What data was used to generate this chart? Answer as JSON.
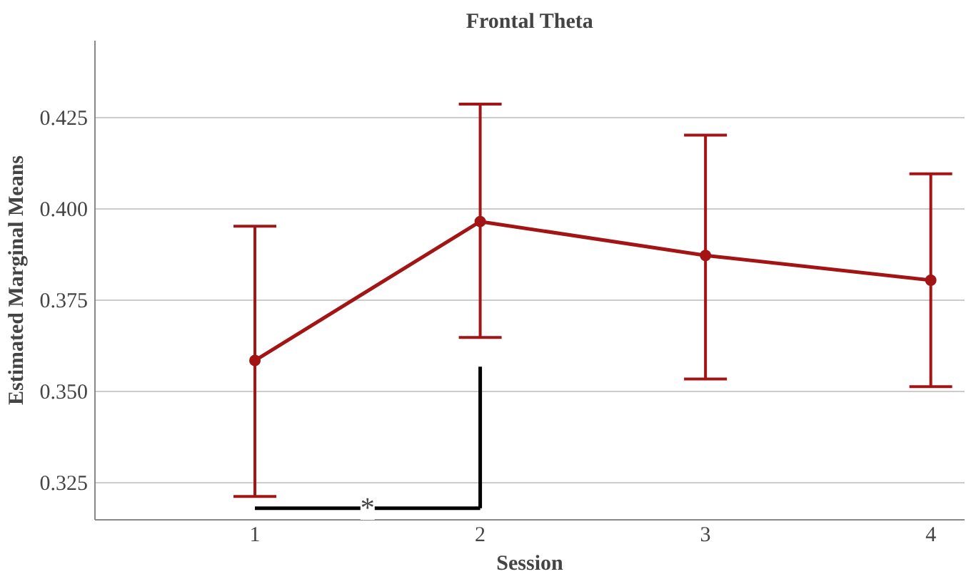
{
  "chart_data": {
    "type": "line",
    "title": "Frontal Theta",
    "xlabel": "Session",
    "ylabel": "Estimated Marginal Means",
    "x": [
      1,
      2,
      3,
      4
    ],
    "series": [
      {
        "color": "#a31515",
        "values": [
          0.3585,
          0.3966,
          0.3873,
          0.3805
        ],
        "errors": [
          [
            0.3212,
            0.3953
          ],
          [
            0.3648,
            0.4288
          ],
          [
            0.3534,
            0.4203
          ],
          [
            0.3513,
            0.4097
          ]
        ]
      }
    ],
    "xlim": [
      0.29,
      4.15
    ],
    "xticks": [
      1,
      2,
      3,
      4
    ],
    "ylim": [
      0.3148,
      0.4462
    ],
    "yticks": [
      0.325,
      {
        "value": 0.35,
        "label": "0.350"
      },
      0.375,
      {
        "value": 0.4,
        "label": "0.400"
      },
      0.425
    ],
    "grid": "y",
    "marker": "circle",
    "line_style": "solid",
    "annotations": [
      {
        "text": "*",
        "x": 1.5,
        "y": 0.318
      }
    ]
  }
}
